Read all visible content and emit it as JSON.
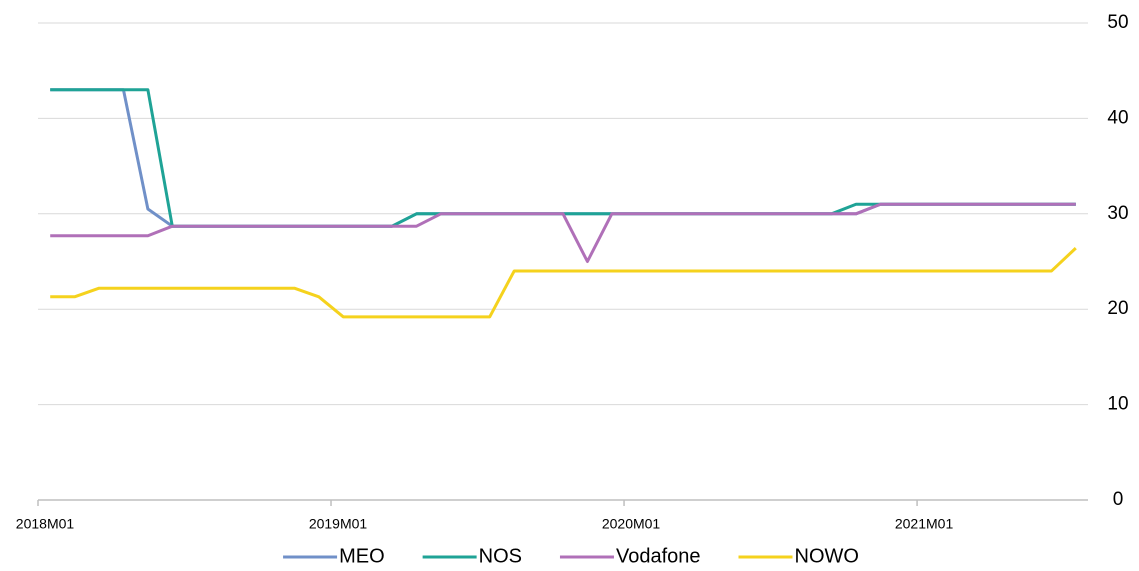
{
  "chart_data": {
    "type": "line",
    "categories": [
      "2018M01",
      null,
      null,
      null,
      null,
      null,
      null,
      null,
      null,
      null,
      null,
      null,
      "2019M01",
      null,
      null,
      null,
      null,
      null,
      null,
      null,
      null,
      null,
      null,
      null,
      "2020M01",
      null,
      null,
      null,
      null,
      null,
      null,
      null,
      null,
      null,
      null,
      null,
      "2021M01",
      null,
      null,
      null,
      null,
      null,
      null
    ],
    "series": [
      {
        "name": "MEO",
        "color": "#7090c8",
        "values": [
          43,
          43,
          43,
          43,
          30.5,
          28.7,
          28.7,
          28.7,
          28.7,
          28.7,
          28.7,
          28.7,
          28.7,
          28.7,
          28.7,
          30,
          30,
          30,
          30,
          30,
          30,
          30,
          30,
          30,
          30,
          30,
          30,
          30,
          30,
          30,
          30,
          30,
          30,
          30,
          31,
          31,
          31,
          31,
          31,
          31,
          31,
          31,
          31
        ]
      },
      {
        "name": "NOS",
        "color": "#1fa396",
        "values": [
          43,
          43,
          43,
          43,
          43,
          28.7,
          28.7,
          28.7,
          28.7,
          28.7,
          28.7,
          28.7,
          28.7,
          28.7,
          28.7,
          30,
          30,
          30,
          30,
          30,
          30,
          30,
          30,
          30,
          30,
          30,
          30,
          30,
          30,
          30,
          30,
          30,
          30,
          31,
          31,
          31,
          31,
          31,
          31,
          31,
          31,
          31,
          31
        ]
      },
      {
        "name": "Vodafone",
        "color": "#b070b8",
        "values": [
          27.7,
          27.7,
          27.7,
          27.7,
          27.7,
          28.7,
          28.7,
          28.7,
          28.7,
          28.7,
          28.7,
          28.7,
          28.7,
          28.7,
          28.7,
          28.7,
          30,
          30,
          30,
          30,
          30,
          30,
          25,
          30,
          30,
          30,
          30,
          30,
          30,
          30,
          30,
          30,
          30,
          30,
          31,
          31,
          31,
          31,
          31,
          31,
          31,
          31,
          31
        ]
      },
      {
        "name": "NOWO",
        "color": "#f5d21d",
        "values": [
          21.3,
          21.3,
          22.2,
          22.2,
          22.2,
          22.2,
          22.2,
          22.2,
          22.2,
          22.2,
          22.2,
          21.3,
          19.2,
          19.2,
          19.2,
          19.2,
          19.2,
          19.2,
          19.2,
          24,
          24,
          24,
          24,
          24,
          24,
          24,
          24,
          24,
          24,
          24,
          24,
          24,
          24,
          24,
          24,
          24,
          24,
          24,
          24,
          24,
          24,
          24,
          26.4
        ]
      }
    ],
    "ylim": [
      0,
      50
    ],
    "yticks": [
      0,
      10,
      20,
      30,
      40,
      50
    ],
    "grid": true,
    "legend": "bottom"
  }
}
